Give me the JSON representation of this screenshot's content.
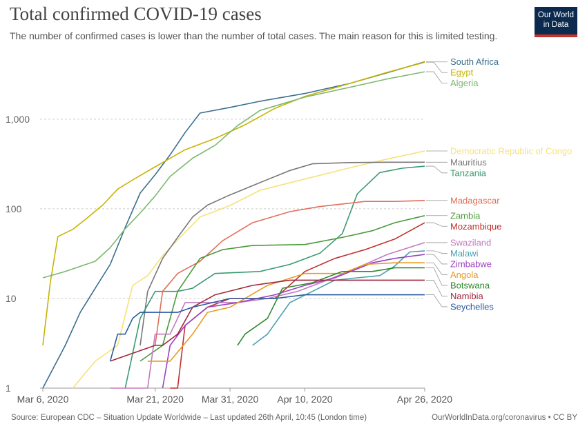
{
  "header": {
    "title": "Total confirmed COVID-19 cases",
    "subtitle": "The number of confirmed cases is lower than the number of total cases. The main reason for this is limited testing.",
    "logo_line1": "Our World",
    "logo_line2": "in Data"
  },
  "footer": {
    "source": "Source: European CDC – Situation Update Worldwide – Last updated 26th April, 10:45 (London time)",
    "credit": "OurWorldInData.org/coronavirus • CC BY"
  },
  "chart_data": {
    "type": "line",
    "title": "Total confirmed COVID-19 cases",
    "yscale": "log",
    "ylim": [
      1,
      5000
    ],
    "y_ticks": [
      1,
      10,
      100,
      1000
    ],
    "y_tick_labels": [
      "1",
      "10",
      "100",
      "1,000"
    ],
    "x_start": "2020-03-06",
    "x_end": "2020-04-26",
    "x_ticks": [
      {
        "date": "2020-03-06",
        "label": "Mar 6, 2020"
      },
      {
        "date": "2020-03-21",
        "label": "Mar 21, 2020"
      },
      {
        "date": "2020-03-31",
        "label": "Mar 31, 2020"
      },
      {
        "date": "2020-04-10",
        "label": "Apr 10, 2020"
      },
      {
        "date": "2020-04-26",
        "label": "Apr 26, 2020"
      }
    ],
    "grid": "horizontal dotted",
    "legend": "right, labels at line ends",
    "series": [
      {
        "name": "South Africa",
        "color": "#3a6e8f",
        "points": [
          [
            "2020-03-06",
            1
          ],
          [
            "2020-03-09",
            3
          ],
          [
            "2020-03-11",
            7
          ],
          [
            "2020-03-13",
            13
          ],
          [
            "2020-03-15",
            24
          ],
          [
            "2020-03-17",
            62
          ],
          [
            "2020-03-19",
            150
          ],
          [
            "2020-03-21",
            240
          ],
          [
            "2020-03-23",
            400
          ],
          [
            "2020-03-25",
            709
          ],
          [
            "2020-03-27",
            1170
          ],
          [
            "2020-03-31",
            1353
          ],
          [
            "2020-04-04",
            1585
          ],
          [
            "2020-04-10",
            1934
          ],
          [
            "2020-04-16",
            2506
          ],
          [
            "2020-04-21",
            3300
          ],
          [
            "2020-04-26",
            4361
          ]
        ]
      },
      {
        "name": "Egypt",
        "color": "#c8b400",
        "points": [
          [
            "2020-03-06",
            3
          ],
          [
            "2020-03-07",
            15
          ],
          [
            "2020-03-08",
            49
          ],
          [
            "2020-03-10",
            59
          ],
          [
            "2020-03-12",
            80
          ],
          [
            "2020-03-14",
            110
          ],
          [
            "2020-03-16",
            166
          ],
          [
            "2020-03-18",
            210
          ],
          [
            "2020-03-21",
            294
          ],
          [
            "2020-03-25",
            456
          ],
          [
            "2020-03-29",
            609
          ],
          [
            "2020-04-02",
            865
          ],
          [
            "2020-04-06",
            1322
          ],
          [
            "2020-04-10",
            1794
          ],
          [
            "2020-04-16",
            2505
          ],
          [
            "2020-04-21",
            3333
          ],
          [
            "2020-04-26",
            4319
          ]
        ]
      },
      {
        "name": "Algeria",
        "color": "#7cb870",
        "points": [
          [
            "2020-03-06",
            17
          ],
          [
            "2020-03-09",
            20
          ],
          [
            "2020-03-13",
            26
          ],
          [
            "2020-03-15",
            37
          ],
          [
            "2020-03-17",
            60
          ],
          [
            "2020-03-19",
            90
          ],
          [
            "2020-03-21",
            139
          ],
          [
            "2020-03-23",
            230
          ],
          [
            "2020-03-26",
            367
          ],
          [
            "2020-03-29",
            511
          ],
          [
            "2020-04-01",
            847
          ],
          [
            "2020-04-04",
            1251
          ],
          [
            "2020-04-10",
            1761
          ],
          [
            "2020-04-16",
            2268
          ],
          [
            "2020-04-21",
            2811
          ],
          [
            "2020-04-26",
            3382
          ]
        ]
      },
      {
        "name": "Democratic Republic of Congo",
        "color": "#f5e27a",
        "points": [
          [
            "2020-03-10",
            1
          ],
          [
            "2020-03-13",
            2
          ],
          [
            "2020-03-16",
            3
          ],
          [
            "2020-03-18",
            14
          ],
          [
            "2020-03-20",
            18
          ],
          [
            "2020-03-22",
            30
          ],
          [
            "2020-03-24",
            45
          ],
          [
            "2020-03-27",
            81
          ],
          [
            "2020-03-31",
            109
          ],
          [
            "2020-04-04",
            161
          ],
          [
            "2020-04-10",
            215
          ],
          [
            "2020-04-16",
            287
          ],
          [
            "2020-04-21",
            359
          ],
          [
            "2020-04-26",
            442
          ]
        ]
      },
      {
        "name": "Mauritius",
        "color": "#777777",
        "points": [
          [
            "2020-03-19",
            3
          ],
          [
            "2020-03-20",
            12
          ],
          [
            "2020-03-22",
            28
          ],
          [
            "2020-03-24",
            48
          ],
          [
            "2020-03-26",
            81
          ],
          [
            "2020-03-28",
            110
          ],
          [
            "2020-03-31",
            143
          ],
          [
            "2020-04-04",
            196
          ],
          [
            "2020-04-08",
            268
          ],
          [
            "2020-04-11",
            318
          ],
          [
            "2020-04-16",
            328
          ],
          [
            "2020-04-21",
            331
          ],
          [
            "2020-04-26",
            331
          ]
        ]
      },
      {
        "name": "Tanzania",
        "color": "#3a9a70",
        "points": [
          [
            "2020-03-17",
            1
          ],
          [
            "2020-03-19",
            6
          ],
          [
            "2020-03-21",
            12
          ],
          [
            "2020-03-24",
            12
          ],
          [
            "2020-03-26",
            13
          ],
          [
            "2020-03-29",
            19
          ],
          [
            "2020-04-04",
            20
          ],
          [
            "2020-04-08",
            24
          ],
          [
            "2020-04-12",
            32
          ],
          [
            "2020-04-15",
            53
          ],
          [
            "2020-04-17",
            147
          ],
          [
            "2020-04-20",
            254
          ],
          [
            "2020-04-23",
            284
          ],
          [
            "2020-04-26",
            299
          ]
        ]
      },
      {
        "name": "Madagascar",
        "color": "#e06f5a",
        "points": [
          [
            "2020-03-21",
            3
          ],
          [
            "2020-03-22",
            12
          ],
          [
            "2020-03-24",
            19
          ],
          [
            "2020-03-27",
            26
          ],
          [
            "2020-03-30",
            44
          ],
          [
            "2020-04-03",
            70
          ],
          [
            "2020-04-08",
            93
          ],
          [
            "2020-04-12",
            106
          ],
          [
            "2020-04-18",
            121
          ],
          [
            "2020-04-22",
            121
          ],
          [
            "2020-04-26",
            124
          ]
        ]
      },
      {
        "name": "Zambia",
        "color": "#4a9a3a",
        "points": [
          [
            "2020-03-19",
            2
          ],
          [
            "2020-03-22",
            3
          ],
          [
            "2020-03-24",
            12
          ],
          [
            "2020-03-27",
            28
          ],
          [
            "2020-03-30",
            35
          ],
          [
            "2020-04-03",
            39
          ],
          [
            "2020-04-10",
            40
          ],
          [
            "2020-04-15",
            48
          ],
          [
            "2020-04-19",
            57
          ],
          [
            "2020-04-22",
            70
          ],
          [
            "2020-04-26",
            84
          ]
        ]
      },
      {
        "name": "Mozambique",
        "color": "#c0302c",
        "points": [
          [
            "2020-03-23",
            1
          ],
          [
            "2020-03-24",
            1
          ],
          [
            "2020-03-25",
            5
          ],
          [
            "2020-03-28",
            8
          ],
          [
            "2020-03-31",
            10
          ],
          [
            "2020-04-06",
            10
          ],
          [
            "2020-04-10",
            20
          ],
          [
            "2020-04-14",
            28
          ],
          [
            "2020-04-18",
            35
          ],
          [
            "2020-04-22",
            46
          ],
          [
            "2020-04-26",
            70
          ]
        ]
      },
      {
        "name": "Swaziland",
        "color": "#c07bbf",
        "points": [
          [
            "2020-03-15",
            1
          ],
          [
            "2020-03-20",
            1
          ],
          [
            "2020-03-21",
            4
          ],
          [
            "2020-03-23",
            4
          ],
          [
            "2020-03-25",
            9
          ],
          [
            "2020-03-28",
            9
          ],
          [
            "2020-04-01",
            9
          ],
          [
            "2020-04-05",
            10
          ],
          [
            "2020-04-09",
            12
          ],
          [
            "2020-04-13",
            16
          ],
          [
            "2020-04-17",
            22
          ],
          [
            "2020-04-21",
            31
          ],
          [
            "2020-04-26",
            42
          ]
        ]
      },
      {
        "name": "Malawi",
        "color": "#4aa0b0",
        "points": [
          [
            "2020-04-03",
            3
          ],
          [
            "2020-04-05",
            4
          ],
          [
            "2020-04-08",
            9
          ],
          [
            "2020-04-11",
            12
          ],
          [
            "2020-04-14",
            16
          ],
          [
            "2020-04-17",
            17
          ],
          [
            "2020-04-20",
            18
          ],
          [
            "2020-04-22",
            23
          ],
          [
            "2020-04-24",
            33
          ],
          [
            "2020-04-26",
            34
          ]
        ]
      },
      {
        "name": "Zimbabwe",
        "color": "#9a3fc0",
        "points": [
          [
            "2020-03-22",
            1
          ],
          [
            "2020-03-23",
            3
          ],
          [
            "2020-03-25",
            5
          ],
          [
            "2020-03-28",
            8
          ],
          [
            "2020-04-01",
            9
          ],
          [
            "2020-04-06",
            11
          ],
          [
            "2020-04-10",
            14
          ],
          [
            "2020-04-14",
            17
          ],
          [
            "2020-04-19",
            25
          ],
          [
            "2020-04-22",
            28
          ],
          [
            "2020-04-26",
            31
          ]
        ]
      },
      {
        "name": "Angola",
        "color": "#e89a20",
        "points": [
          [
            "2020-03-20",
            2
          ],
          [
            "2020-03-23",
            2
          ],
          [
            "2020-03-26",
            4
          ],
          [
            "2020-03-28",
            7
          ],
          [
            "2020-03-31",
            8
          ],
          [
            "2020-04-05",
            14
          ],
          [
            "2020-04-10",
            19
          ],
          [
            "2020-04-15",
            19
          ],
          [
            "2020-04-18",
            24
          ],
          [
            "2020-04-22",
            25
          ],
          [
            "2020-04-26",
            25
          ]
        ]
      },
      {
        "name": "Botswana",
        "color": "#2e8a2e",
        "points": [
          [
            "2020-04-01",
            3
          ],
          [
            "2020-04-02",
            4
          ],
          [
            "2020-04-05",
            6
          ],
          [
            "2020-04-07",
            13
          ],
          [
            "2020-04-11",
            15
          ],
          [
            "2020-04-15",
            20
          ],
          [
            "2020-04-19",
            20
          ],
          [
            "2020-04-22",
            22
          ],
          [
            "2020-04-26",
            22
          ]
        ]
      },
      {
        "name": "Namibia",
        "color": "#a0283c",
        "points": [
          [
            "2020-03-15",
            2
          ],
          [
            "2020-03-21",
            3
          ],
          [
            "2020-03-22",
            3
          ],
          [
            "2020-03-24",
            4
          ],
          [
            "2020-03-26",
            8
          ],
          [
            "2020-03-29",
            11
          ],
          [
            "2020-04-03",
            14
          ],
          [
            "2020-04-08",
            16
          ],
          [
            "2020-04-14",
            16
          ],
          [
            "2020-04-20",
            16
          ],
          [
            "2020-04-26",
            16
          ]
        ]
      },
      {
        "name": "Seychelles",
        "color": "#2a5aa0",
        "points": [
          [
            "2020-03-15",
            2
          ],
          [
            "2020-03-16",
            4
          ],
          [
            "2020-03-17",
            4
          ],
          [
            "2020-03-18",
            6
          ],
          [
            "2020-03-19",
            7
          ],
          [
            "2020-03-24",
            7
          ],
          [
            "2020-03-26",
            8
          ],
          [
            "2020-03-31",
            10
          ],
          [
            "2020-04-06",
            10
          ],
          [
            "2020-04-10",
            11
          ],
          [
            "2020-04-20",
            11
          ],
          [
            "2020-04-26",
            11
          ]
        ]
      }
    ],
    "label_order": [
      "South Africa",
      "Egypt",
      "Algeria",
      "Democratic Republic of Congo",
      "Mauritius",
      "Tanzania",
      "Madagascar",
      "Zambia",
      "Mozambique",
      "Swaziland",
      "Malawi",
      "Zimbabwe",
      "Angola",
      "Botswana",
      "Namibia",
      "Seychelles"
    ]
  }
}
